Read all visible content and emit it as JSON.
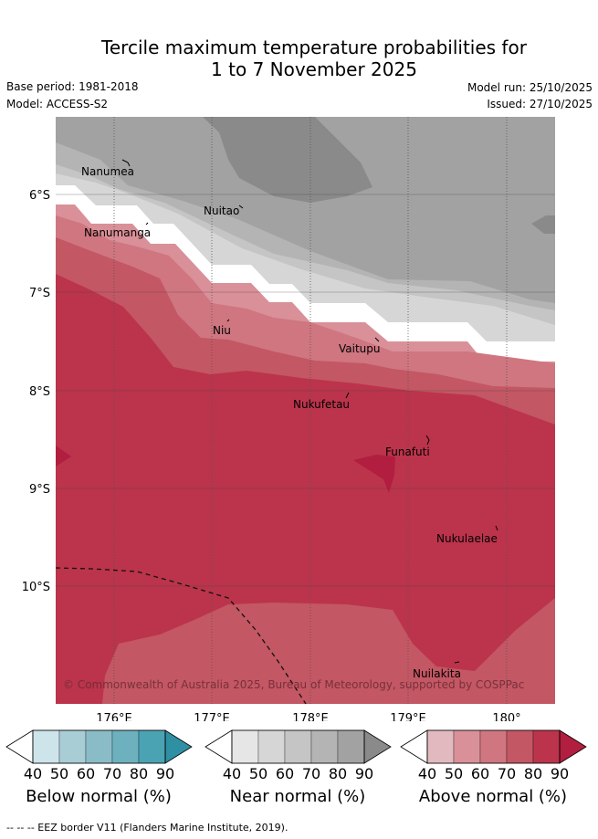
{
  "title": {
    "line1": "Tercile maximum temperature probabilities for",
    "line2": "1 to 7 November 2025"
  },
  "meta": {
    "base_period": "Base period: 1981-2018",
    "model": "Model: ACCESS-S2",
    "model_run": "Model run: 25/10/2025",
    "issued": "Issued: 27/10/2025"
  },
  "map": {
    "lat_labels": [
      "6°S",
      "7°S",
      "8°S",
      "9°S",
      "10°S"
    ],
    "lon_labels": [
      "176°E",
      "177°E",
      "178°E",
      "179°E",
      "180°"
    ],
    "places": [
      {
        "name": "Nanumea"
      },
      {
        "name": "Nuitao"
      },
      {
        "name": "Nanumanga"
      },
      {
        "name": "Niu"
      },
      {
        "name": "Vaitupu"
      },
      {
        "name": "Nukufetau"
      },
      {
        "name": "Funafuti"
      },
      {
        "name": "Nukulaelae"
      },
      {
        "name": "Nuilakita"
      }
    ],
    "copyright": "© Commonwealth of Australia 2025, Bureau of Meteorology, supported by COSPPac"
  },
  "colorbars": [
    {
      "caption": "Below normal (%)",
      "ticks": [
        "40",
        "50",
        "60",
        "70",
        "80",
        "90"
      ],
      "colors": [
        "#ffffff",
        "#cde4ea",
        "#a8cdd5",
        "#8abcc8",
        "#6db0be",
        "#4aa3b3",
        "#2f8fa3"
      ]
    },
    {
      "caption": "Near normal (%)",
      "ticks": [
        "40",
        "50",
        "60",
        "70",
        "80",
        "90"
      ],
      "colors": [
        "#ffffff",
        "#e6e6e6",
        "#d6d6d6",
        "#c5c5c5",
        "#b4b4b4",
        "#a2a2a2",
        "#8a8a8a"
      ]
    },
    {
      "caption": "Above normal (%)",
      "ticks": [
        "40",
        "50",
        "60",
        "70",
        "80",
        "90"
      ],
      "colors": [
        "#ffffff",
        "#e3b9c0",
        "#d99098",
        "#cf7680",
        "#c35763",
        "#bb344b",
        "#b21e3f"
      ]
    }
  ],
  "footnote": "-- -- -- EEZ border V11 (Flanders Marine Institute, 2019)."
}
